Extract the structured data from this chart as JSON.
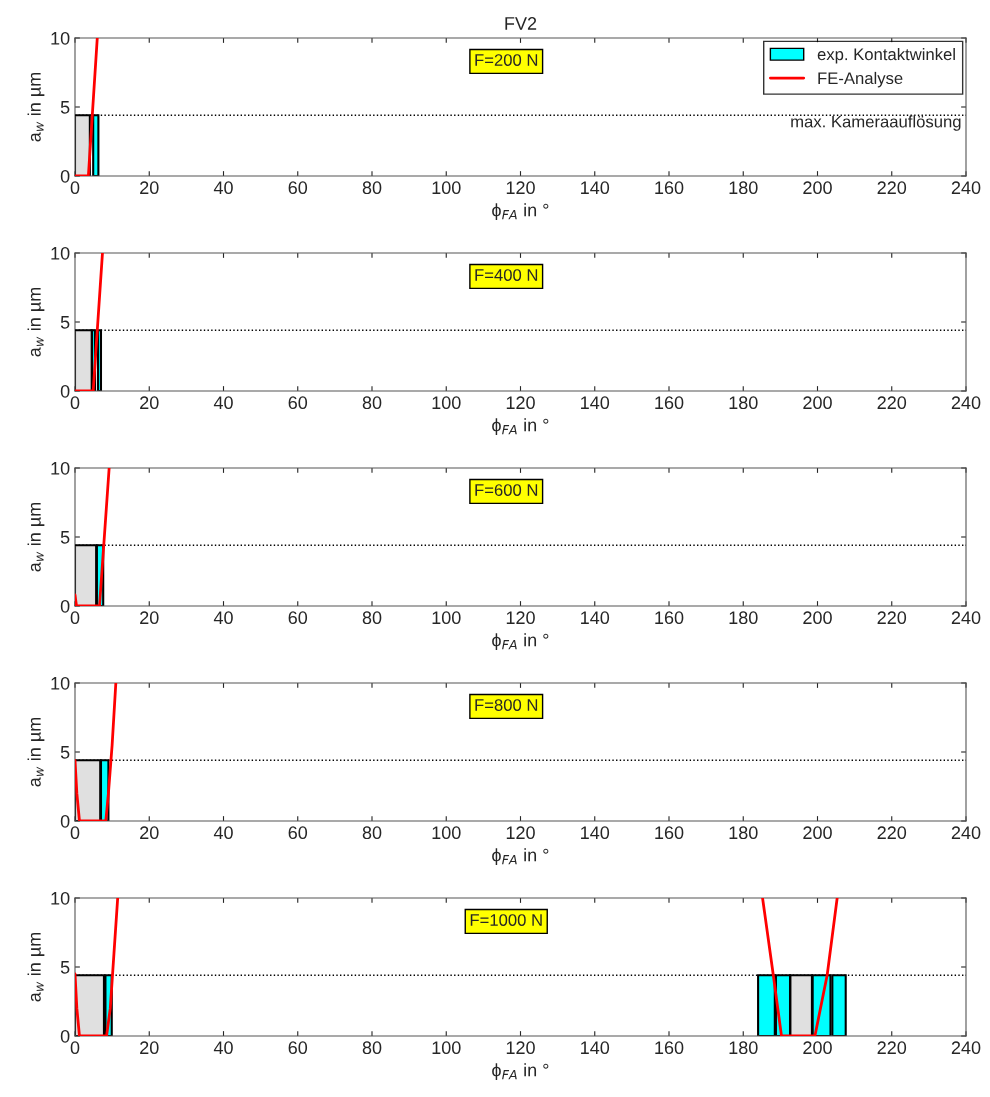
{
  "chart_data": [
    {
      "type": "area",
      "title": "FV2",
      "xlabel": "ϕ$_{FA}$ in °",
      "ylabel": "a$_{w}$ in µm",
      "xlim": [
        0,
        240
      ],
      "ylim": [
        0,
        10
      ],
      "xticks": [
        0,
        20,
        40,
        60,
        80,
        100,
        120,
        140,
        160,
        180,
        200,
        220,
        240
      ],
      "yticks": [
        0,
        5,
        10
      ],
      "legend": "top right",
      "annotations": [
        "F=200 N"
      ],
      "ref_lines": [
        {
          "axis": "y",
          "value": 4.4,
          "label": "max. Kameraauflösung",
          "color": "#000000",
          "line_style": "dotted"
        }
      ],
      "series": [
        {
          "color": "#e0e0e0",
          "x": [
            0,
            0,
            4.0,
            4.0
          ],
          "values": [
            0,
            4.4,
            4.4,
            0
          ]
        },
        {
          "name": "exp. Kontaktwinkel",
          "color": "#00ffff",
          "x": [
            4.9,
            4.9,
            6.3,
            6.3
          ],
          "values": [
            0,
            4.4,
            4.4,
            0
          ]
        },
        {
          "name": "FE-Analyse",
          "type": "line",
          "color": "#ff0000",
          "x": [
            0,
            3.6,
            6.0
          ],
          "values": [
            0,
            0,
            10
          ]
        }
      ]
    },
    {
      "type": "area",
      "xlabel": "ϕ$_{FA}$ in °",
      "ylabel": "a$_{w}$ in µm",
      "xlim": [
        0,
        240
      ],
      "ylim": [
        0,
        10
      ],
      "xticks": [
        0,
        20,
        40,
        60,
        80,
        100,
        120,
        140,
        160,
        180,
        200,
        220,
        240
      ],
      "yticks": [
        0,
        5,
        10
      ],
      "annotations": [
        "F=400 N"
      ],
      "ref_lines": [
        {
          "axis": "y",
          "value": 4.4,
          "color": "#000000",
          "line_style": "dotted"
        }
      ],
      "series": [
        {
          "color": "#e0e0e0",
          "x": [
            0,
            0,
            4.5,
            4.5
          ],
          "values": [
            0,
            4.4,
            4.4,
            0
          ]
        },
        {
          "color": "#00ffff",
          "x": [
            4.6,
            4.6,
            5.4,
            5.4
          ],
          "values": [
            0,
            4.4,
            4.4,
            0
          ]
        },
        {
          "color": "#00ffff",
          "x": [
            6.2,
            6.2,
            7.0,
            7.0
          ],
          "values": [
            0,
            4.4,
            4.4,
            0
          ]
        },
        {
          "type": "line",
          "color": "#ff0000",
          "x": [
            0,
            4.9,
            7.4
          ],
          "values": [
            0,
            0,
            10
          ]
        }
      ]
    },
    {
      "type": "area",
      "xlabel": "ϕ$_{FA}$ in °",
      "ylabel": "a$_{w}$ in µm",
      "xlim": [
        0,
        240
      ],
      "ylim": [
        0,
        10
      ],
      "xticks": [
        0,
        20,
        40,
        60,
        80,
        100,
        120,
        140,
        160,
        180,
        200,
        220,
        240
      ],
      "yticks": [
        0,
        5,
        10
      ],
      "annotations": [
        "F=600 N"
      ],
      "ref_lines": [
        {
          "axis": "y",
          "value": 4.4,
          "color": "#000000",
          "line_style": "dotted"
        }
      ],
      "series": [
        {
          "color": "#e0e0e0",
          "x": [
            0,
            0,
            5.7,
            5.7
          ],
          "values": [
            0,
            4.4,
            4.4,
            0
          ]
        },
        {
          "color": "#00ffff",
          "x": [
            5.9,
            5.9,
            7.6,
            7.6
          ],
          "values": [
            0,
            4.4,
            4.4,
            0
          ]
        },
        {
          "type": "line",
          "color": "#ff0000",
          "x": [
            0,
            0.4,
            6.6,
            9.2
          ],
          "values": [
            0.8,
            0,
            0,
            10
          ]
        }
      ]
    },
    {
      "type": "area",
      "xlabel": "ϕ$_{FA}$ in °",
      "ylabel": "a$_{w}$ in µm",
      "xlim": [
        0,
        240
      ],
      "ylim": [
        0,
        10
      ],
      "xticks": [
        0,
        20,
        40,
        60,
        80,
        100,
        120,
        140,
        160,
        180,
        200,
        220,
        240
      ],
      "yticks": [
        0,
        5,
        10
      ],
      "annotations": [
        "F=800 N"
      ],
      "ref_lines": [
        {
          "axis": "y",
          "value": 4.4,
          "color": "#000000",
          "line_style": "dotted"
        }
      ],
      "series": [
        {
          "color": "#e0e0e0",
          "x": [
            0,
            0,
            6.8,
            6.8
          ],
          "values": [
            0,
            4.4,
            4.4,
            0
          ]
        },
        {
          "color": "#00ffff",
          "x": [
            7.0,
            7.0,
            9.0,
            9.0
          ],
          "values": [
            0,
            4.4,
            4.4,
            0
          ]
        },
        {
          "type": "line",
          "color": "#ff0000",
          "x": [
            0,
            0.5,
            1.2,
            8.3,
            9.0,
            10,
            11
          ],
          "values": [
            4.4,
            2,
            0,
            0,
            2,
            5.5,
            10
          ]
        }
      ]
    },
    {
      "type": "area",
      "xlabel": "ϕ$_{FA}$ in °",
      "ylabel": "a$_{w}$ in µm",
      "xlim": [
        0,
        240
      ],
      "ylim": [
        0,
        10
      ],
      "xticks": [
        0,
        20,
        40,
        60,
        80,
        100,
        120,
        140,
        160,
        180,
        200,
        220,
        240
      ],
      "yticks": [
        0,
        5,
        10
      ],
      "annotations": [
        "F=1000 N"
      ],
      "ref_lines": [
        {
          "axis": "y",
          "value": 4.4,
          "color": "#000000",
          "line_style": "dotted"
        }
      ],
      "series": [
        {
          "color": "#e0e0e0",
          "x": [
            0,
            0,
            7.8,
            7.8
          ],
          "values": [
            0,
            4.4,
            4.4,
            0
          ]
        },
        {
          "color": "#00ffff",
          "x": [
            8.2,
            8.2,
            9.9,
            9.9
          ],
          "values": [
            0,
            4.4,
            4.4,
            0
          ]
        },
        {
          "color": "#00ffff",
          "x": [
            184.0,
            184.0,
            188.5,
            188.5
          ],
          "values": [
            0,
            4.4,
            4.4,
            0
          ]
        },
        {
          "color": "#00ffff",
          "x": [
            188.8,
            188.8,
            192.6,
            192.6
          ],
          "values": [
            0,
            4.4,
            4.4,
            0
          ]
        },
        {
          "color": "#e0e0e0",
          "x": [
            192.7,
            192.7,
            198.5,
            198.5
          ],
          "values": [
            0,
            4.4,
            4.4,
            0
          ]
        },
        {
          "color": "#00ffff",
          "x": [
            198.7,
            198.7,
            203.5,
            203.5
          ],
          "values": [
            0,
            4.4,
            4.4,
            0
          ]
        },
        {
          "color": "#00ffff",
          "x": [
            204.0,
            204.0,
            207.6,
            207.6
          ],
          "values": [
            0,
            4.4,
            4.4,
            0
          ]
        },
        {
          "type": "line",
          "color": "#ff0000",
          "x": [
            0,
            0.5,
            1.2,
            8.5,
            9.5,
            10.5,
            11.5
          ],
          "values": [
            4.5,
            2,
            0,
            0,
            2,
            6,
            10
          ]
        },
        {
          "type": "line",
          "color": "#ff0000",
          "x": [
            185.2,
            188.1,
            190.3,
            199.3,
            202.6,
            205.3
          ],
          "values": [
            10,
            4.4,
            0,
            0,
            4.4,
            10
          ]
        }
      ]
    }
  ]
}
